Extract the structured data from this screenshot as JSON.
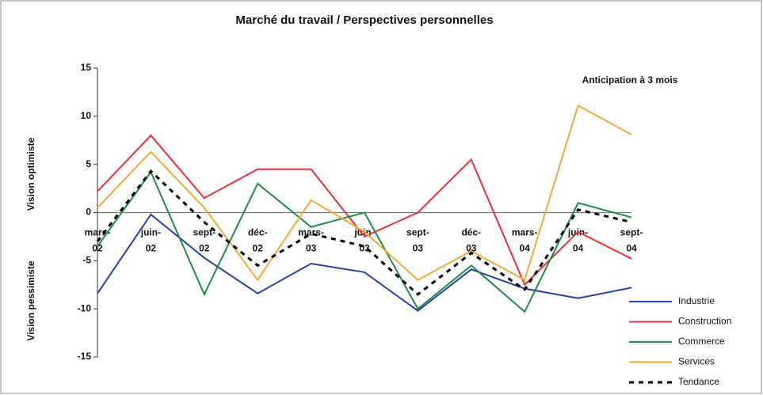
{
  "chart_data": {
    "type": "line",
    "title": "Marché du travail / Perspectives personnelles",
    "annotation": "Anticipation à 3 mois",
    "y_label_upper": "Vision optimiste",
    "y_label_lower": "Vision pessimiste",
    "categories": [
      "mars-02",
      "juin-02",
      "sept-02",
      "déc-02",
      "mars-03",
      "juin-03",
      "sept-03",
      "déc-03",
      "mars-04",
      "juin-04",
      "sept-04"
    ],
    "series": [
      {
        "name": "Industrie",
        "color": "#2a3fa8",
        "values": [
          -8.4,
          -0.2,
          -4.7,
          -8.4,
          -5.3,
          -6.2,
          -10.2,
          -5.9,
          -7.9,
          -8.9,
          -7.8
        ]
      },
      {
        "name": "Construction",
        "color": "#e8303a",
        "values": [
          2.2,
          8.0,
          1.5,
          4.5,
          4.5,
          -2.5,
          0,
          5.5,
          -7.5,
          -2,
          -4.8
        ]
      },
      {
        "name": "Commerce",
        "color": "#1f8a4c",
        "values": [
          -3.5,
          4.2,
          -8.5,
          3,
          -1.5,
          0,
          -10,
          -5.5,
          -10.3,
          1,
          -0.5
        ]
      },
      {
        "name": "Services",
        "color": "#f5a83a",
        "values": [
          0.5,
          6.3,
          0.5,
          -7,
          1.3,
          -2,
          -7,
          -4,
          -7,
          11.1,
          8.1
        ]
      },
      {
        "name": "Tendance",
        "color": "#000000",
        "dashed": true,
        "values": [
          -3,
          4.3,
          -1,
          -5.5,
          -2.2,
          -3.5,
          -8.5,
          -4.2,
          -8,
          0.3,
          -1
        ]
      }
    ],
    "ylim": [
      -15,
      15
    ],
    "yticks": [
      -15,
      -10,
      -5,
      0,
      5,
      10,
      15
    ],
    "grid": false,
    "legend": "lower right"
  }
}
